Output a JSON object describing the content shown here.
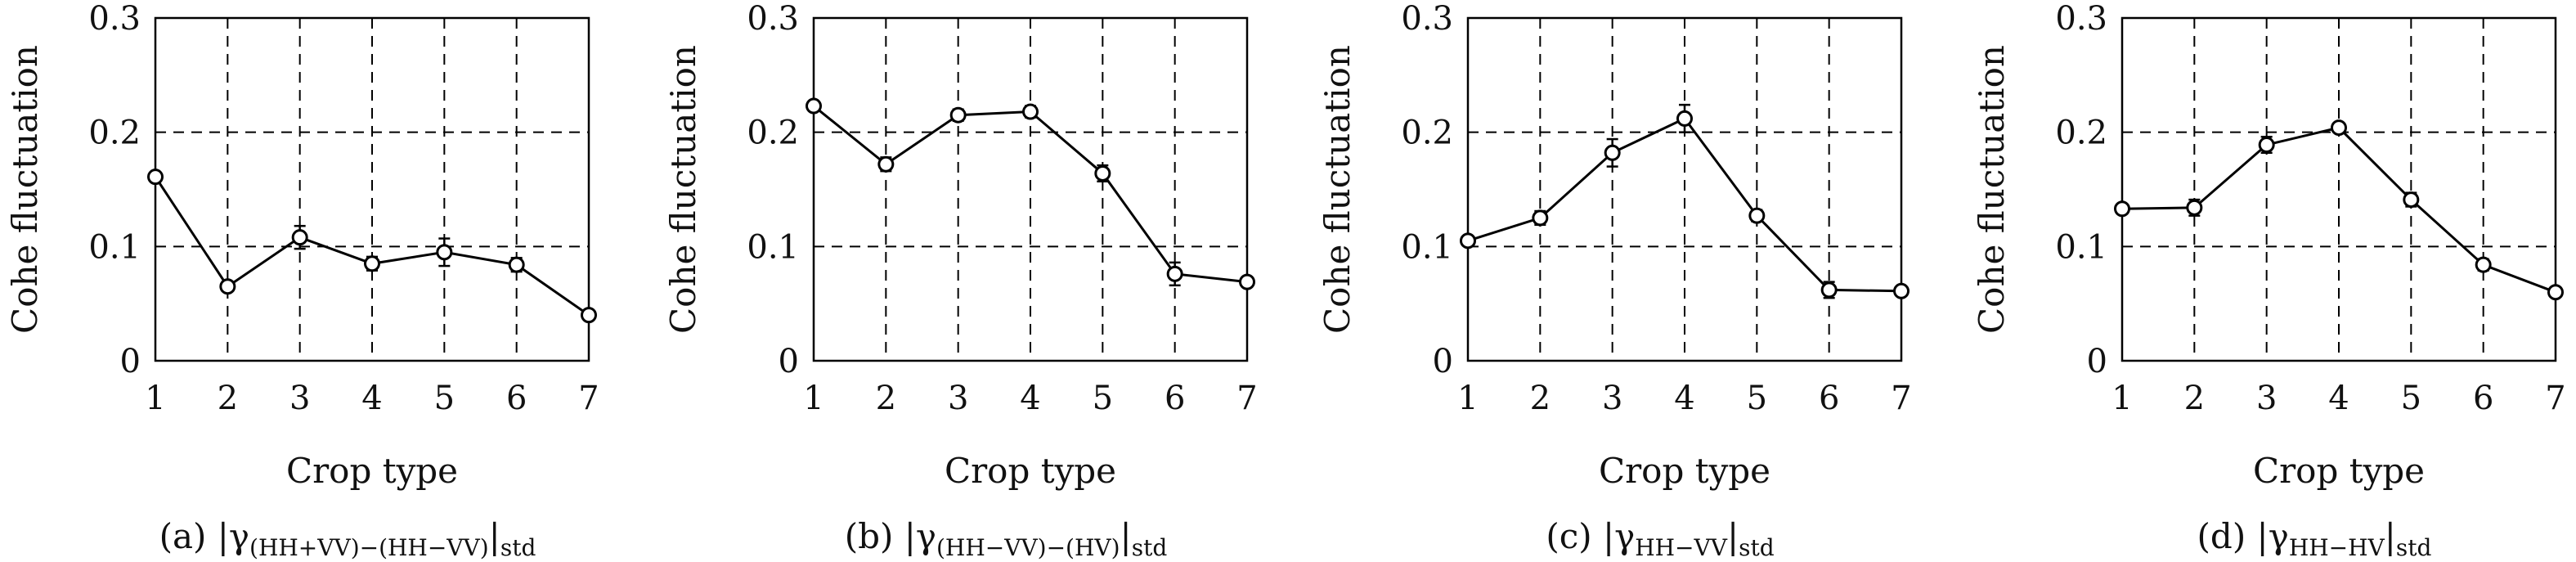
{
  "chart_data": [
    {
      "type": "line",
      "panel": "(a)",
      "caption": {
        "prefix": "(a) |γ",
        "sub": "(HH+VV)−(HH−VV)",
        "suffix": "|",
        "sub2": "std"
      },
      "xlabel": "Crop type",
      "ylabel": "Cohe fluctuation",
      "x": [
        1,
        2,
        3,
        4,
        5,
        6,
        7
      ],
      "y": [
        0.161,
        0.065,
        0.108,
        0.085,
        0.095,
        0.084,
        0.04
      ],
      "err": [
        0.004,
        0.004,
        0.01,
        0.006,
        0.012,
        0.006,
        0.003
      ],
      "xlim": [
        1,
        7
      ],
      "ylim": [
        0,
        0.3
      ],
      "xticks": [
        "1",
        "2",
        "3",
        "4",
        "5",
        "6",
        "7"
      ],
      "yticks": [
        "0",
        "0.1",
        "0.2",
        "0.3"
      ],
      "grid": true
    },
    {
      "type": "line",
      "panel": "(b)",
      "caption": {
        "prefix": "(b) |γ",
        "sub": "(HH−VV)−(HV)",
        "suffix": "|",
        "sub2": "std"
      },
      "xlabel": "Crop type",
      "ylabel": "Cohe fluctuation",
      "x": [
        1,
        2,
        3,
        4,
        5,
        6,
        7
      ],
      "y": [
        0.223,
        0.172,
        0.215,
        0.218,
        0.164,
        0.076,
        0.069
      ],
      "err": [
        0.004,
        0.006,
        0.005,
        0.005,
        0.007,
        0.01,
        0.003
      ],
      "xlim": [
        1,
        7
      ],
      "ylim": [
        0,
        0.3
      ],
      "xticks": [
        "1",
        "2",
        "3",
        "4",
        "5",
        "6",
        "7"
      ],
      "yticks": [
        "0",
        "0.1",
        "0.2",
        "0.3"
      ],
      "grid": true
    },
    {
      "type": "line",
      "panel": "(c)",
      "caption": {
        "prefix": "(c) |γ",
        "sub": "HH−VV",
        "suffix": "|",
        "sub2": "std"
      },
      "xlabel": "Crop type",
      "ylabel": "Cohe fluctuation",
      "x": [
        1,
        2,
        3,
        4,
        5,
        6,
        7
      ],
      "y": [
        0.105,
        0.125,
        0.182,
        0.212,
        0.127,
        0.062,
        0.061
      ],
      "err": [
        0.004,
        0.006,
        0.012,
        0.012,
        0.005,
        0.007,
        0.003
      ],
      "xlim": [
        1,
        7
      ],
      "ylim": [
        0,
        0.3
      ],
      "xticks": [
        "1",
        "2",
        "3",
        "4",
        "5",
        "6",
        "7"
      ],
      "yticks": [
        "0",
        "0.1",
        "0.2",
        "0.3"
      ],
      "grid": true
    },
    {
      "type": "line",
      "panel": "(d)",
      "caption": {
        "prefix": "(d) |γ",
        "sub": "HH−HV",
        "suffix": "|",
        "sub2": "std"
      },
      "xlabel": "Crop type",
      "ylabel": "Cohe fluctuation",
      "x": [
        1,
        2,
        3,
        4,
        5,
        6,
        7
      ],
      "y": [
        0.133,
        0.134,
        0.189,
        0.204,
        0.141,
        0.084,
        0.06
      ],
      "err": [
        0.003,
        0.007,
        0.007,
        0.004,
        0.006,
        0.005,
        0.003
      ],
      "xlim": [
        1,
        7
      ],
      "ylim": [
        0,
        0.3
      ],
      "xticks": [
        "1",
        "2",
        "3",
        "4",
        "5",
        "6",
        "7"
      ],
      "yticks": [
        "0",
        "0.1",
        "0.2",
        "0.3"
      ],
      "grid": true
    }
  ]
}
